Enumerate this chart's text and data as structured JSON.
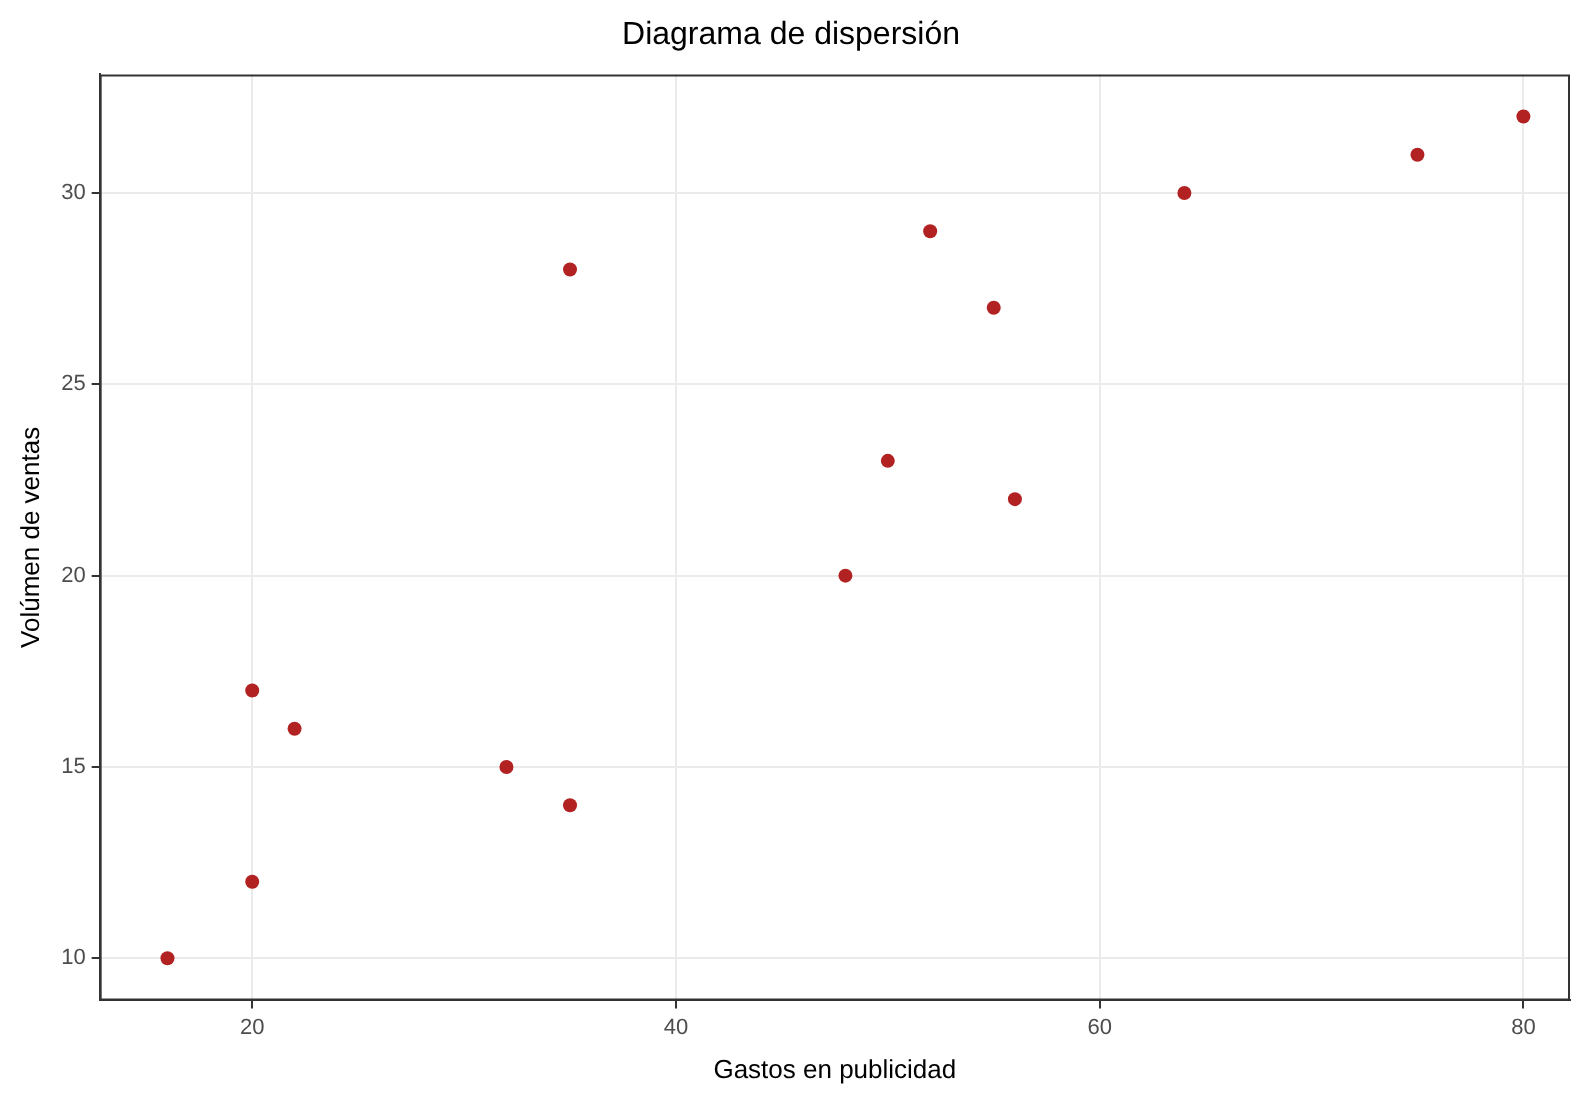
{
  "chart_data": {
    "type": "scatter",
    "title": "Diagrama de dispersión",
    "xlabel": "Gastos en publicidad",
    "ylabel": "Volúmen de ventas",
    "x": [
      16,
      20,
      20,
      22,
      32,
      35,
      35,
      48,
      50,
      52,
      55,
      56,
      64,
      75,
      80
    ],
    "series": [
      {
        "color": "#b22222",
        "values": [
          10,
          12,
          17,
          16,
          15,
          14,
          28,
          20,
          23,
          29,
          27,
          22,
          30,
          31,
          32
        ]
      }
    ],
    "xlim": [
      12.8,
      82.2
    ],
    "ylim": [
      8.9,
      33.1
    ],
    "xticks": [
      20,
      40,
      60,
      80
    ],
    "yticks": [
      10,
      15,
      20,
      25,
      30
    ],
    "grid": true,
    "legend": false,
    "marker": "circle"
  }
}
